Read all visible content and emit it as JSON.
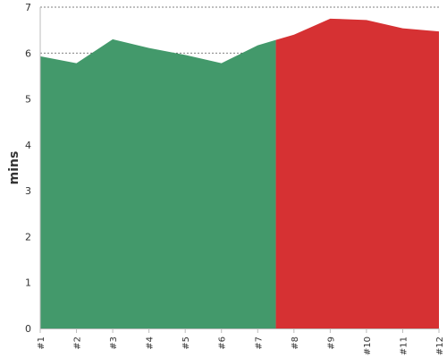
{
  "chart_data": {
    "type": "area",
    "x": [
      "#1",
      "#2",
      "#3",
      "#4",
      "#5",
      "#6",
      "#7",
      "#8",
      "#9",
      "#10",
      "#11",
      "#12"
    ],
    "values": [
      5.93,
      5.78,
      6.3,
      6.11,
      5.96,
      5.78,
      6.17,
      6.4,
      6.75,
      6.72,
      6.54,
      6.47
    ],
    "ylabel": "mins",
    "xlabel": "",
    "ylim": [
      0,
      7
    ],
    "yticks": [
      0,
      1,
      2,
      3,
      4,
      5,
      6,
      7
    ],
    "grid": true,
    "split_after_index": 6,
    "colors": {
      "segment_1": "#43996b",
      "segment_2": "#d63133",
      "grid": "#555555",
      "axis": "#bbbbbb",
      "text": "#333333"
    }
  }
}
